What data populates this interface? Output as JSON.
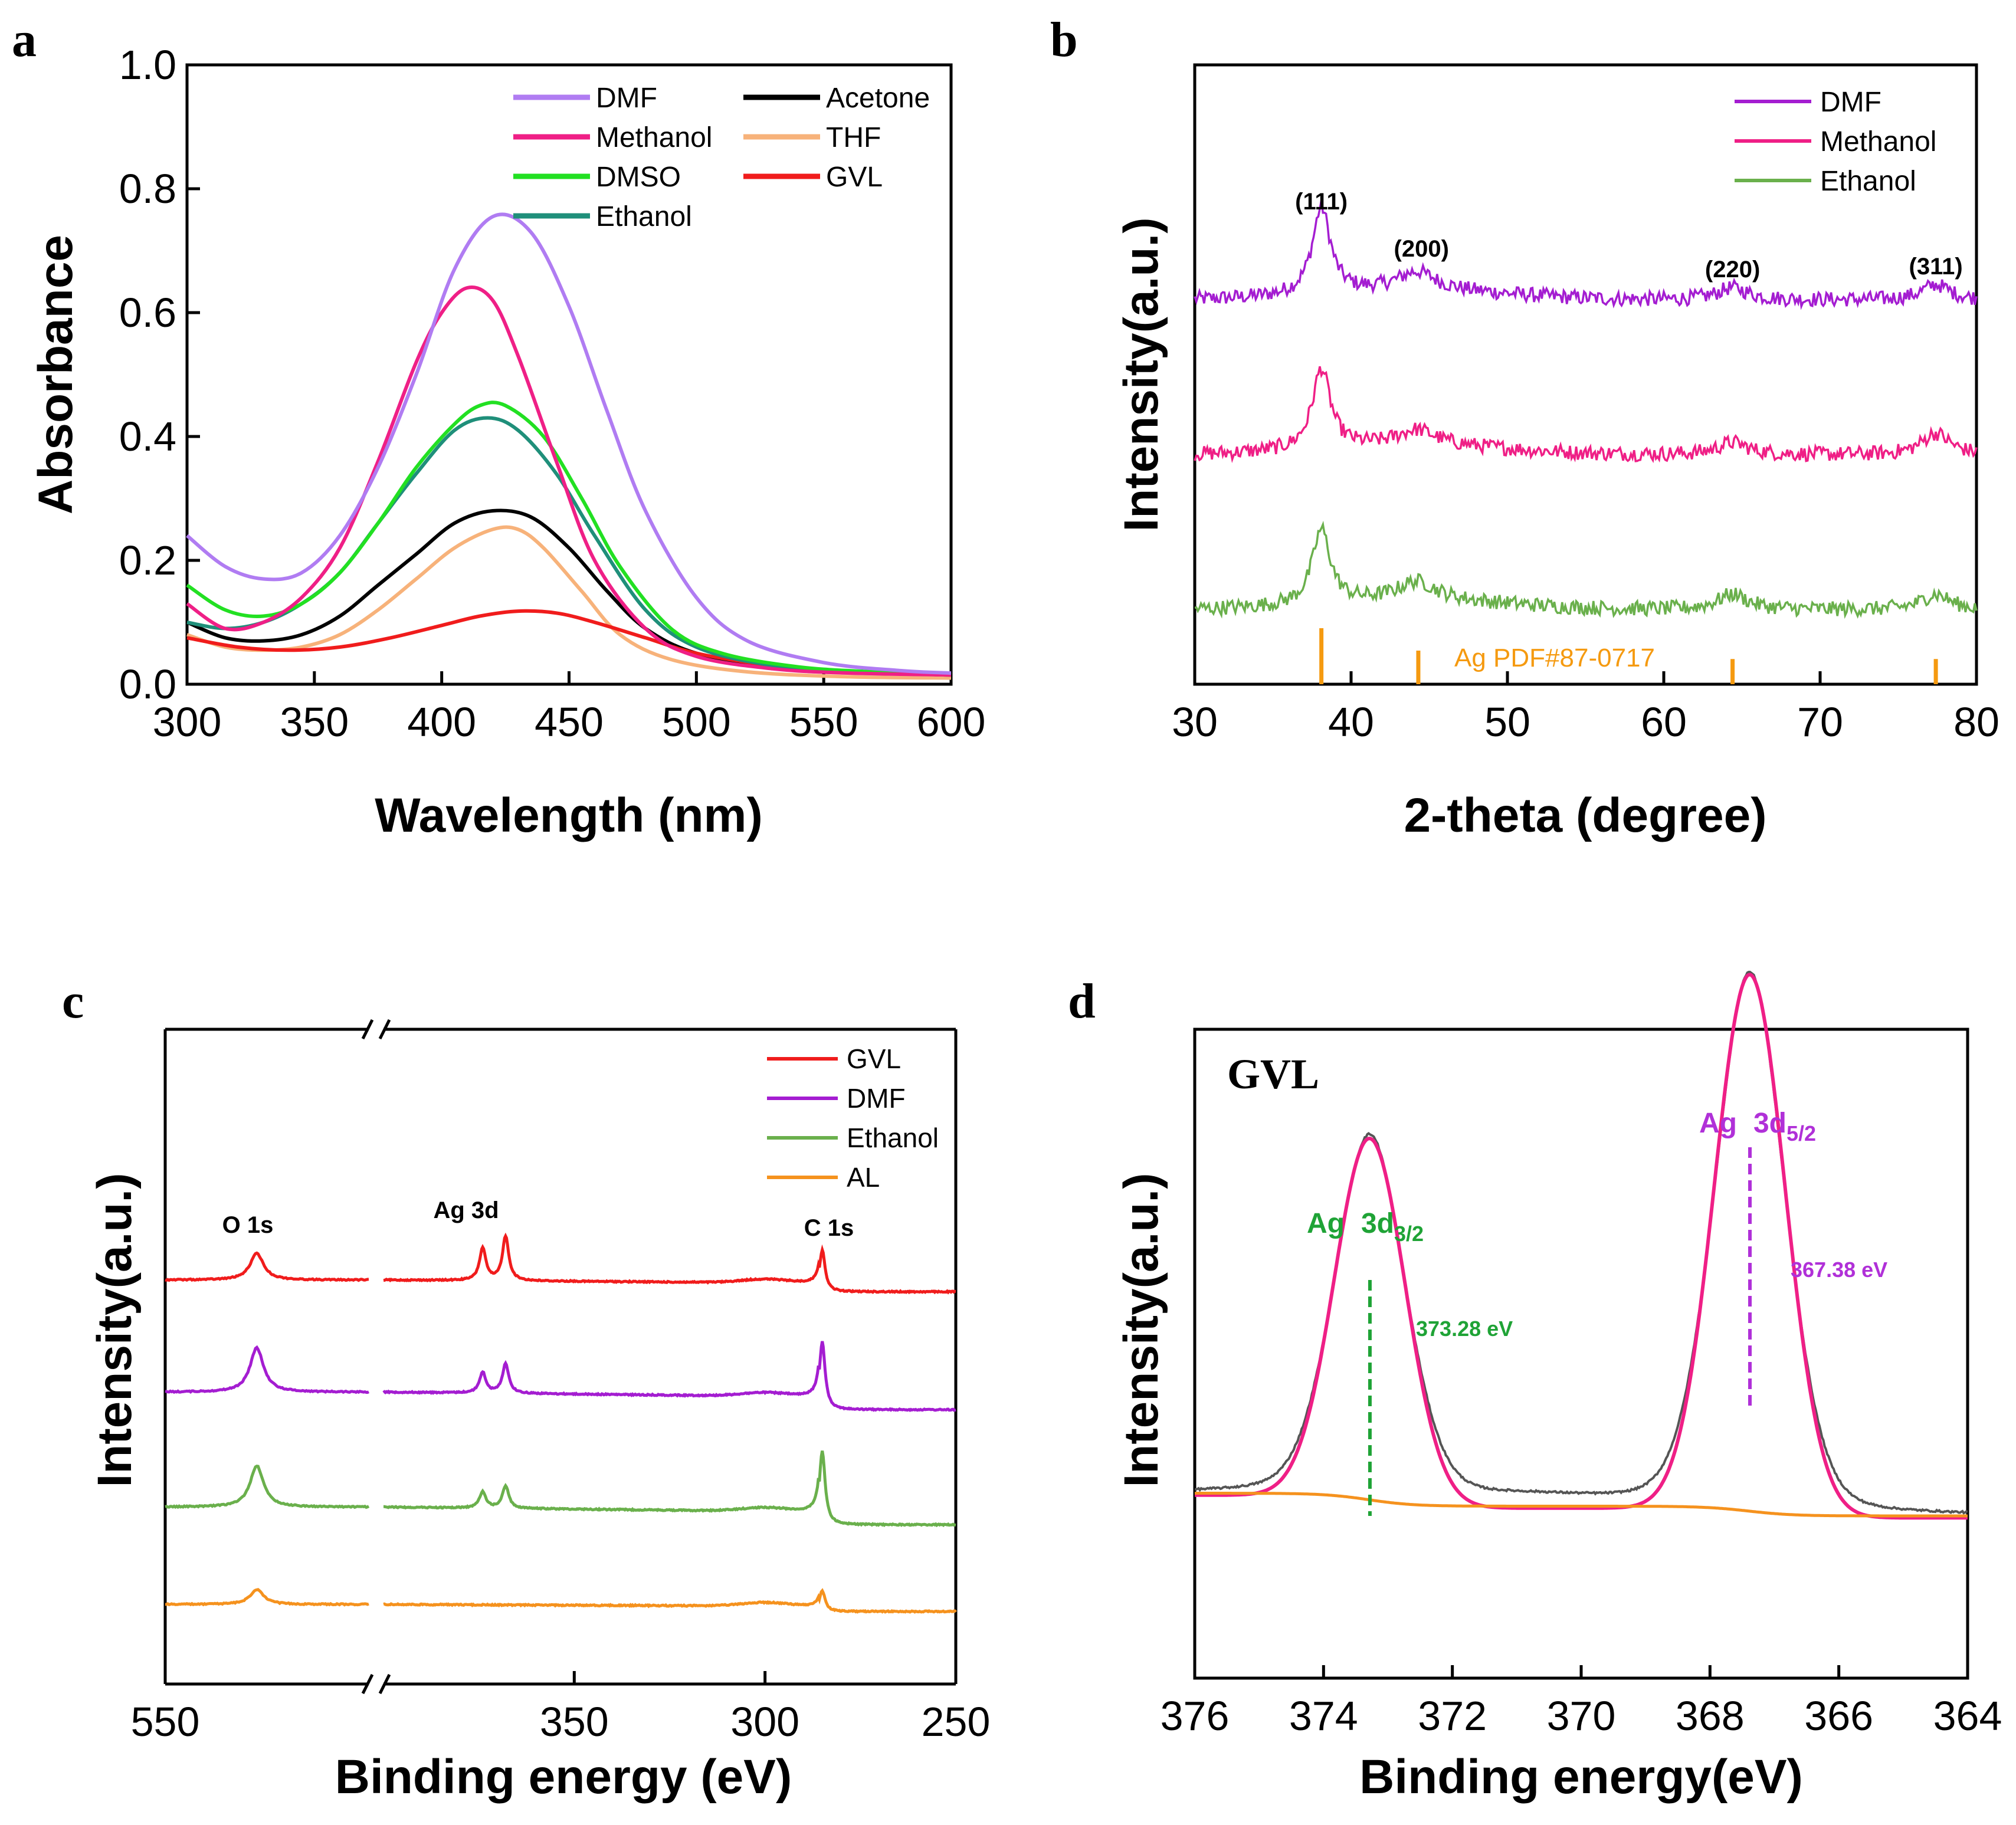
{
  "figure": {
    "panels": [
      {
        "letter": "a",
        "type": "line",
        "xlabel": "Wavelength (nm)",
        "ylabel": "Absorbance",
        "xlim": [
          300,
          600
        ],
        "ylim": [
          0,
          1.0
        ],
        "xticks": [
          "300",
          "350",
          "400",
          "450",
          "500",
          "550",
          "600"
        ],
        "yticks": [
          "0.0",
          "0.2",
          "0.4",
          "0.6",
          "0.8",
          "1.0"
        ],
        "legend": [
          "DMF",
          "Methanol",
          "DMSO",
          "Ethanol",
          "Acetone",
          "THF",
          "GVL"
        ],
        "series": [
          {
            "name": "DMF",
            "color": "#b07cf2",
            "x": [
              300,
              315,
              330,
              345,
              360,
              375,
              390,
              405,
              420,
              435,
              450,
              465,
              480,
              500,
              520,
              550,
              580,
              600
            ],
            "y": [
              0.24,
              0.19,
              0.17,
              0.18,
              0.24,
              0.35,
              0.5,
              0.67,
              0.755,
              0.73,
              0.61,
              0.44,
              0.28,
              0.14,
              0.07,
              0.035,
              0.022,
              0.018
            ]
          },
          {
            "name": "Methanol",
            "color": "#ef1f86",
            "x": [
              300,
              315,
              330,
              345,
              360,
              375,
              390,
              400,
              410,
              420,
              430,
              445,
              460,
              480,
              500,
              530,
              560,
              600
            ],
            "y": [
              0.13,
              0.09,
              0.1,
              0.14,
              0.22,
              0.36,
              0.52,
              0.6,
              0.64,
              0.62,
              0.53,
              0.36,
              0.2,
              0.09,
              0.045,
              0.025,
              0.018,
              0.015
            ]
          },
          {
            "name": "DMSO",
            "color": "#22e022",
            "x": [
              300,
              315,
              330,
              345,
              360,
              375,
              390,
              405,
              415,
              425,
              440,
              455,
              470,
              490,
              510,
              540,
              570,
              600
            ],
            "y": [
              0.16,
              0.12,
              0.11,
              0.13,
              0.18,
              0.26,
              0.35,
              0.42,
              0.45,
              0.45,
              0.4,
              0.3,
              0.19,
              0.09,
              0.05,
              0.028,
              0.02,
              0.016
            ]
          },
          {
            "name": "Ethanol",
            "color": "#1f8f7a",
            "x": [
              300,
              315,
              330,
              345,
              360,
              375,
              390,
              405,
              418,
              430,
              445,
              460,
              480,
              500,
              530,
              560,
              600
            ],
            "y": [
              0.1,
              0.09,
              0.1,
              0.13,
              0.18,
              0.26,
              0.34,
              0.41,
              0.43,
              0.41,
              0.34,
              0.24,
              0.12,
              0.06,
              0.03,
              0.02,
              0.015
            ]
          },
          {
            "name": "Acetone",
            "color": "#000000",
            "x": [
              300,
              315,
              330,
              345,
              360,
              375,
              390,
              405,
              420,
              435,
              450,
              465,
              480,
              500,
              530,
              560,
              600
            ],
            "y": [
              0.1,
              0.075,
              0.07,
              0.08,
              0.11,
              0.16,
              0.21,
              0.26,
              0.28,
              0.27,
              0.22,
              0.15,
              0.09,
              0.05,
              0.03,
              0.02,
              0.015
            ]
          },
          {
            "name": "THF",
            "color": "#f7b27a",
            "x": [
              300,
              315,
              330,
              345,
              360,
              375,
              390,
              405,
              420,
              430,
              440,
              455,
              470,
              490,
              520,
              560,
              600
            ],
            "y": [
              0.08,
              0.06,
              0.055,
              0.06,
              0.08,
              0.12,
              0.17,
              0.22,
              0.25,
              0.25,
              0.22,
              0.15,
              0.08,
              0.04,
              0.02,
              0.012,
              0.01
            ]
          },
          {
            "name": "GVL",
            "color": "#f01c1c",
            "x": [
              300,
              320,
              340,
              360,
              380,
              400,
              415,
              430,
              445,
              460,
              480,
              500,
              530,
              560,
              600
            ],
            "y": [
              0.075,
              0.06,
              0.055,
              0.06,
              0.075,
              0.095,
              0.11,
              0.118,
              0.115,
              0.1,
              0.075,
              0.05,
              0.03,
              0.02,
              0.015
            ]
          }
        ]
      },
      {
        "letter": "b",
        "type": "line",
        "xlabel": "2-theta (degree)",
        "ylabel": "Intensity(a.u.)",
        "xlim": [
          30,
          80
        ],
        "xticks": [
          "30",
          "40",
          "50",
          "60",
          "70",
          "80"
        ],
        "legend": [
          "DMF",
          "Methanol",
          "Ethanol"
        ],
        "series": [
          {
            "name": "DMF",
            "color": "#a41dd1",
            "baseline": 0.62,
            "noise": 0.012
          },
          {
            "name": "Methanol",
            "color": "#ef1f86",
            "baseline": 0.37,
            "noise": 0.012
          },
          {
            "name": "Ethanol",
            "color": "#6ab04c",
            "baseline": 0.12,
            "noise": 0.012
          }
        ],
        "peaks": [
          {
            "x": 38.1,
            "width": 0.7,
            "heights": [
              0.14,
              0.13,
              0.12
            ]
          },
          {
            "x": 44.2,
            "width": 1.5,
            "heights": [
              0.03,
              0.025,
              0.03
            ]
          },
          {
            "x": 64.4,
            "width": 1.2,
            "heights": [
              0.02,
              0.02,
              0.025
            ]
          },
          {
            "x": 77.4,
            "width": 1.1,
            "heights": [
              0.025,
              0.035,
              0.025
            ]
          }
        ],
        "peak_labels": [
          {
            "text": "(111)",
            "x": 38.1
          },
          {
            "text": "(200)",
            "x": 44.5
          },
          {
            "text": "(220)",
            "x": 64.4
          },
          {
            "text": "(311)",
            "x": 77.4
          }
        ],
        "reference": {
          "label": "Ag PDF#87-0717",
          "color": "#f59a10",
          "x": [
            38.1,
            44.3,
            64.4,
            77.4
          ],
          "heights": [
            1.0,
            0.6,
            0.45,
            0.45
          ]
        }
      },
      {
        "letter": "c",
        "type": "line",
        "xlabel": "Binding energy (eV)",
        "ylabel": "Intensity(a.u.)",
        "xticks": [
          "550",
          "350",
          "300",
          "250"
        ],
        "legend": [
          "GVL",
          "DMF",
          "Ethanol",
          "AL"
        ],
        "series": [
          {
            "name": "GVL",
            "color": "#f01c1c"
          },
          {
            "name": "DMF",
            "color": "#a41dd1"
          },
          {
            "name": "Ethanol",
            "color": "#6ab04c"
          },
          {
            "name": "AL",
            "color": "#f5921e"
          }
        ],
        "peak_labels": [
          "O 1s",
          "Ag 3d",
          "C 1s"
        ]
      },
      {
        "letter": "d",
        "type": "line",
        "title": "GVL",
        "xlabel": "Binding energy(eV)",
        "ylabel": "Intensity(a.u.)",
        "xlim": [
          376,
          364
        ],
        "xticks": [
          "376",
          "374",
          "372",
          "370",
          "368",
          "366",
          "364"
        ],
        "series": [
          {
            "name": "Raw",
            "color": "#555555"
          },
          {
            "name": "Fit",
            "color": "#ef1f86"
          },
          {
            "name": "Background",
            "color": "#f5921e"
          }
        ],
        "peaks": [
          {
            "x": 373.28,
            "sigma": 0.55,
            "height": 0.56
          },
          {
            "x": 367.38,
            "sigma": 0.55,
            "height": 0.83
          }
        ],
        "annotations": [
          {
            "label": "Ag",
            "sub_main": "3d",
            "sub": "3/2",
            "value": "373.28 eV",
            "x": 373.28,
            "color": "#1fa336"
          },
          {
            "label": "Ag",
            "sub_main": "3d",
            "sub": "5/2",
            "value": "367.38 eV",
            "x": 367.38,
            "color": "#b030d8"
          }
        ]
      }
    ]
  },
  "chart_data": [
    {
      "type": "line",
      "title": "",
      "xlabel": "Wavelength (nm)",
      "ylabel": "Absorbance",
      "xlim": [
        300,
        600
      ],
      "ylim": [
        0,
        1.0
      ],
      "series": [
        {
          "name": "DMF",
          "peak_x": 422,
          "peak_y": 0.755
        },
        {
          "name": "Methanol",
          "peak_x": 410,
          "peak_y": 0.64
        },
        {
          "name": "DMSO",
          "peak_x": 422,
          "peak_y": 0.455
        },
        {
          "name": "Ethanol",
          "peak_x": 418,
          "peak_y": 0.43
        },
        {
          "name": "Acetone",
          "peak_x": 423,
          "peak_y": 0.28
        },
        {
          "name": "THF",
          "peak_x": 425,
          "peak_y": 0.255
        },
        {
          "name": "GVL",
          "peak_x": 432,
          "peak_y": 0.118
        }
      ]
    },
    {
      "type": "line",
      "xlabel": "2-theta (degree)",
      "ylabel": "Intensity(a.u.)",
      "xlim": [
        30,
        80
      ],
      "reference_peaks": [
        38.1,
        44.3,
        64.4,
        77.4
      ],
      "reference": "Ag PDF#87-0717"
    },
    {
      "type": "line",
      "xlabel": "Binding energy (eV)",
      "ylabel": "Intensity(a.u.)",
      "peaks": [
        "O 1s",
        "Ag 3d",
        "C 1s"
      ],
      "series": [
        "GVL",
        "DMF",
        "Ethanol",
        "AL"
      ]
    },
    {
      "type": "line",
      "title": "GVL",
      "xlabel": "Binding energy(eV)",
      "ylabel": "Intensity(a.u.)",
      "xlim": [
        376,
        364
      ],
      "peaks": [
        {
          "name": "Ag 3d3/2",
          "x": 373.28
        },
        {
          "name": "Ag 3d5/2",
          "x": 367.38
        }
      ]
    }
  ]
}
